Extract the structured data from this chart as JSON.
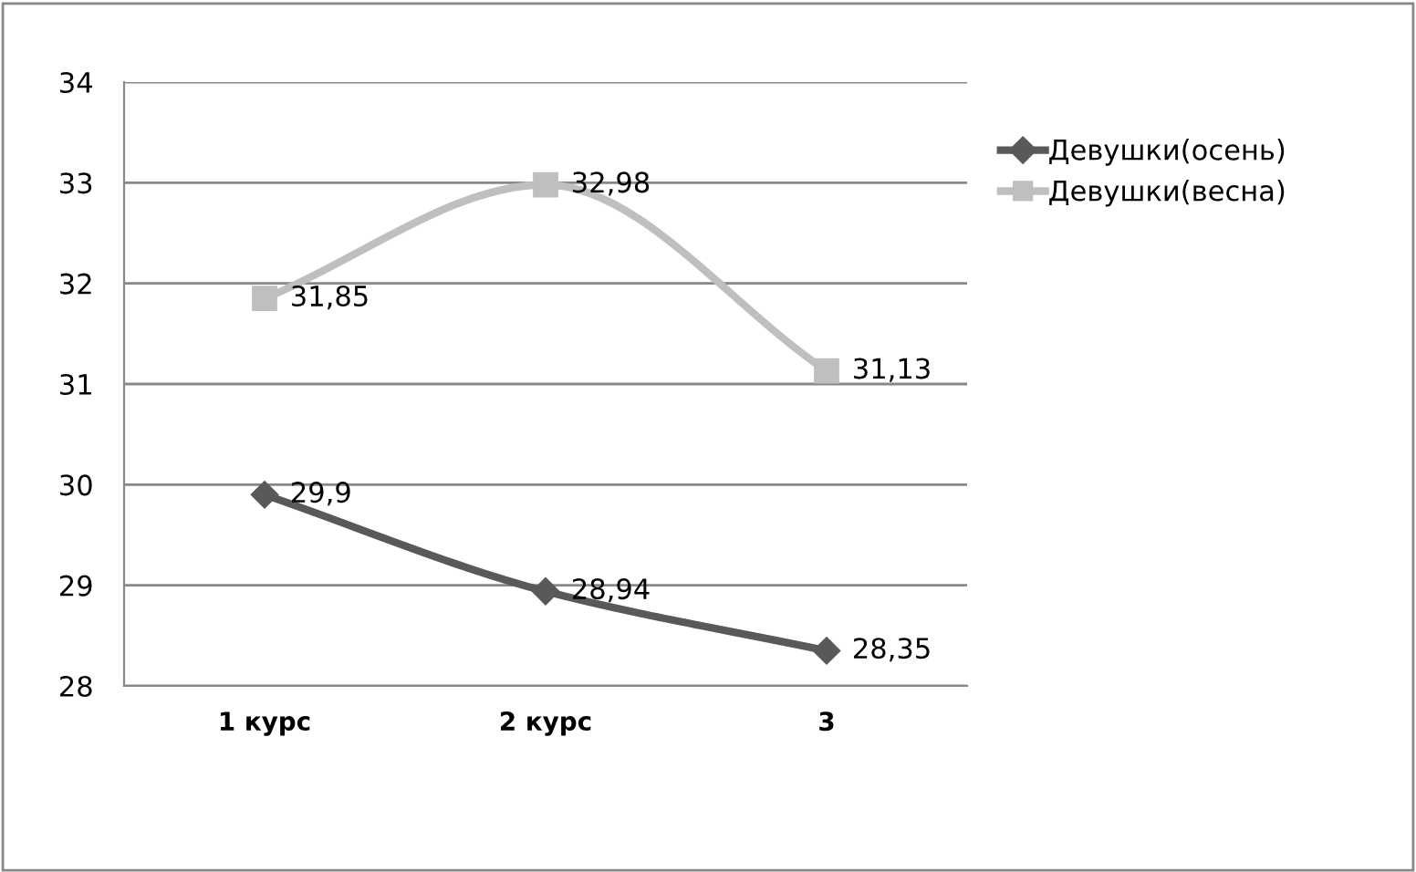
{
  "chart_data": {
    "type": "line",
    "categories": [
      "1 курс",
      "2 курс",
      "3"
    ],
    "series": [
      {
        "name": "Девушки(осень)",
        "color": "#595959",
        "values": [
          29.9,
          28.94,
          28.35
        ],
        "marker": "diamond",
        "value_labels": [
          "29,9",
          "28,94",
          "28,35"
        ]
      },
      {
        "name": "Девушки(весна)",
        "color": "#bfbfbf",
        "values": [
          31.85,
          32.98,
          31.13
        ],
        "marker": "square",
        "value_labels": [
          "31,85",
          "32,98",
          "31,13"
        ]
      }
    ],
    "ylim": [
      28,
      34
    ],
    "yticks": [
      28,
      29,
      30,
      31,
      32,
      33,
      34
    ],
    "grid": "y",
    "legend": "right",
    "line_style": "solid"
  }
}
